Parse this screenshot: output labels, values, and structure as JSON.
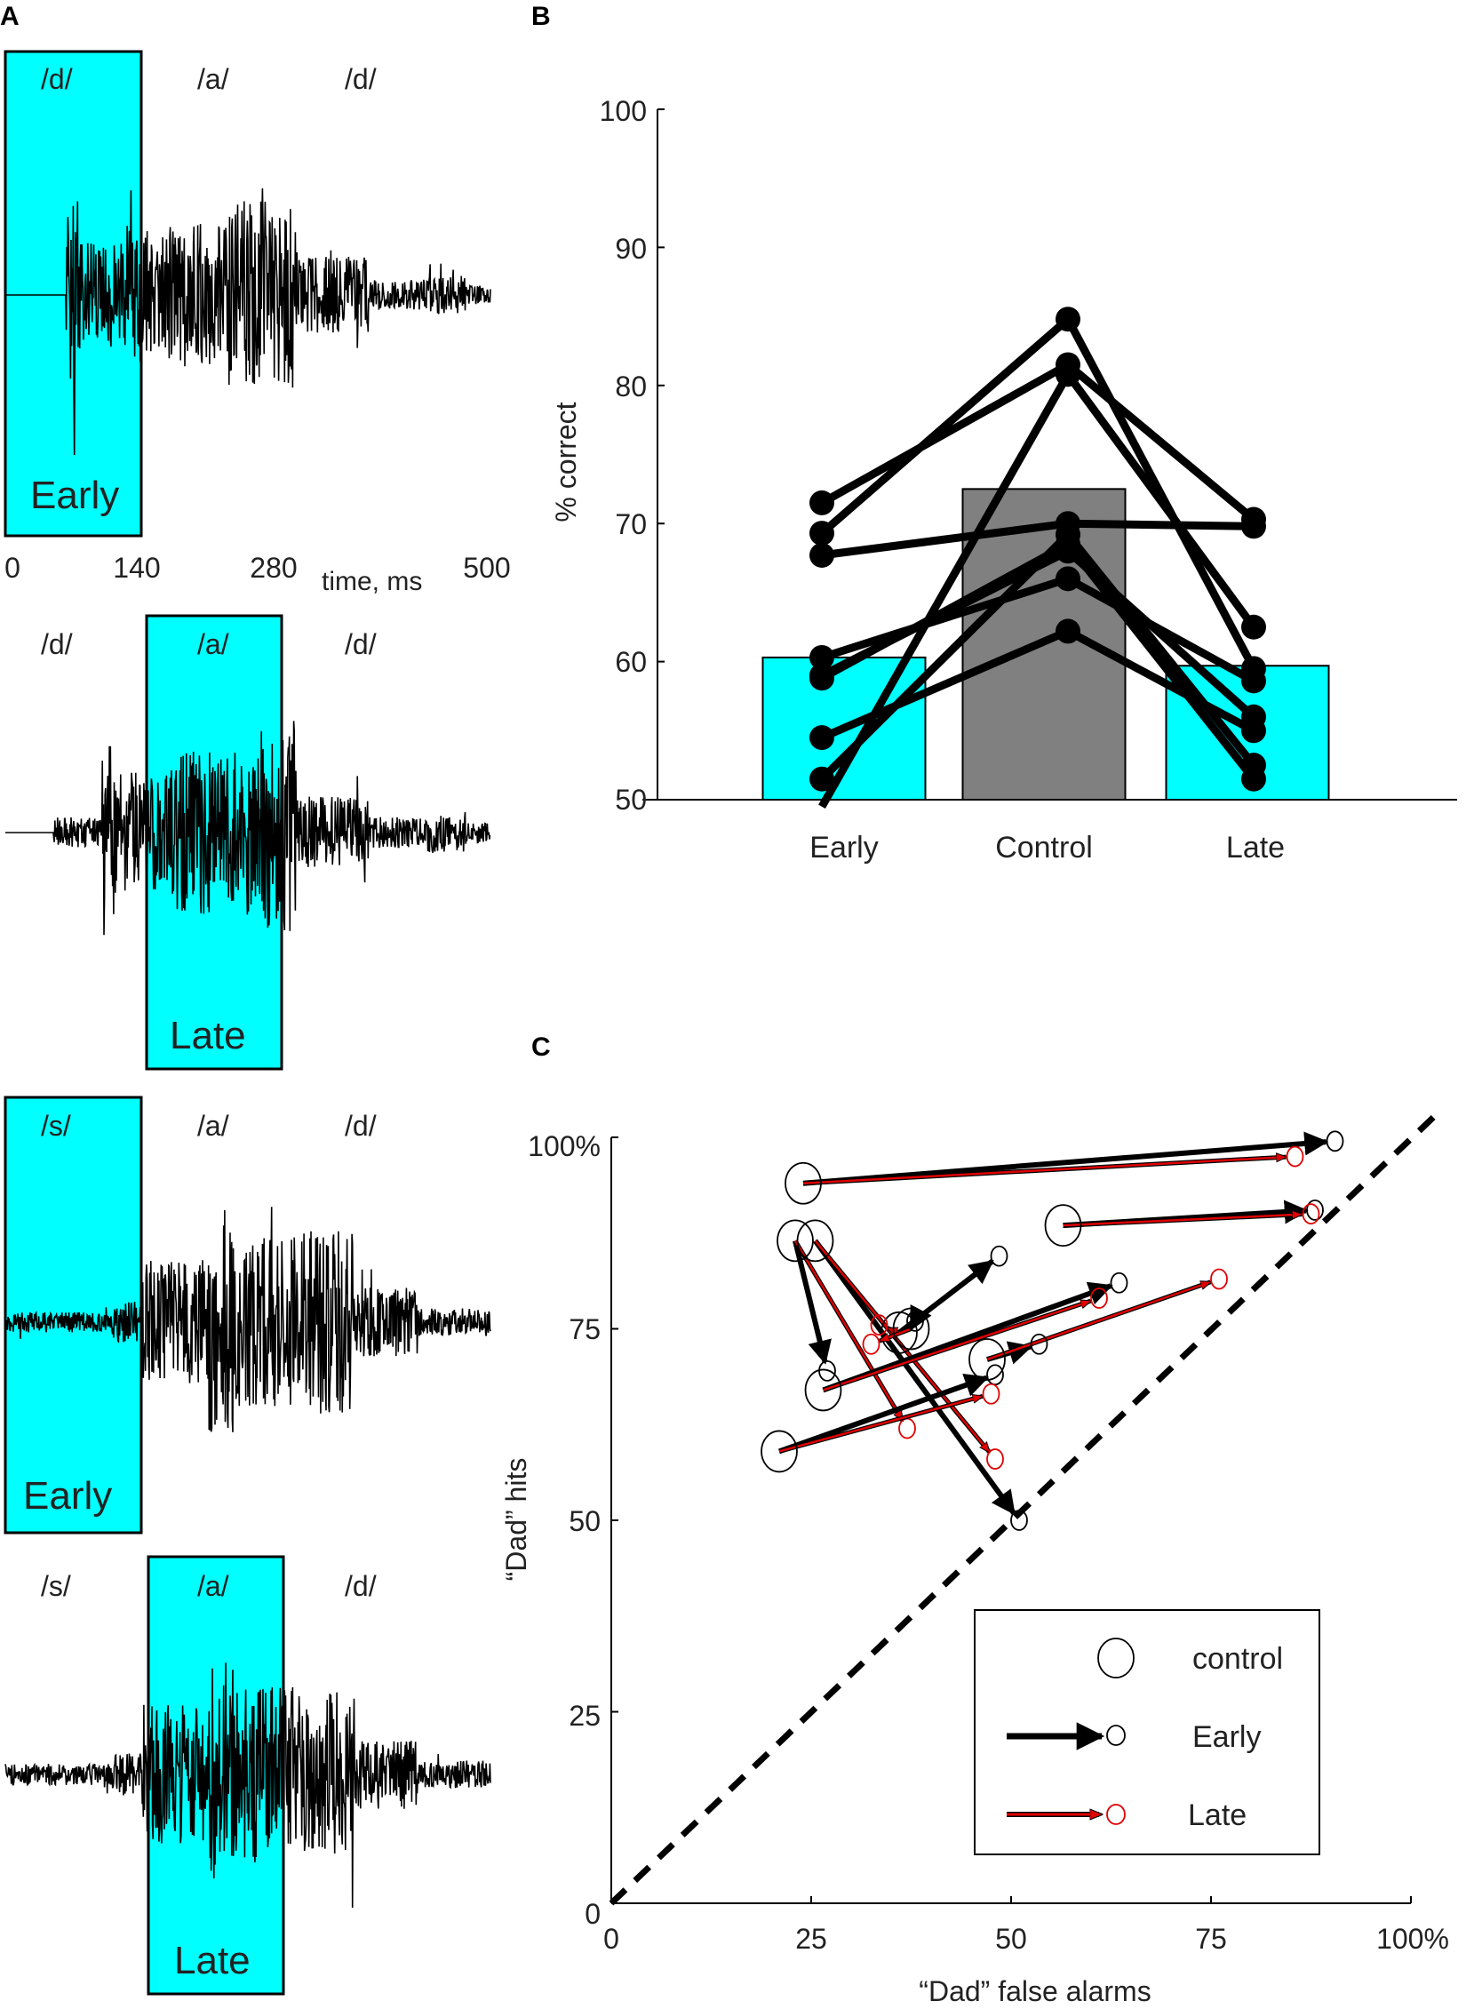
{
  "panels": {
    "a": "A",
    "b": "B",
    "c": "C"
  },
  "waveforms": [
    {
      "phonemes": [
        "/d/",
        "/a/",
        "/d/"
      ],
      "highlight": "Early",
      "seed": 11,
      "segments": [
        [
          0,
          0.125,
          0
        ],
        [
          0.125,
          0.155,
          1
        ],
        [
          0.155,
          0.25,
          0.55
        ],
        [
          0.25,
          0.46,
          0.75
        ],
        [
          0.46,
          0.6,
          1
        ],
        [
          0.6,
          0.75,
          0.4
        ],
        [
          0.75,
          0.87,
          0.16
        ],
        [
          0.87,
          0.95,
          0.2
        ],
        [
          0.95,
          1,
          0.1
        ]
      ]
    },
    {
      "phonemes": [
        "/d/",
        "/a/",
        "/d/"
      ],
      "highlight": "Late",
      "seed": 23,
      "segments": [
        [
          0,
          0.1,
          0
        ],
        [
          0.1,
          0.2,
          0.15
        ],
        [
          0.2,
          0.23,
          1
        ],
        [
          0.23,
          0.34,
          0.6
        ],
        [
          0.34,
          0.52,
          0.8
        ],
        [
          0.52,
          0.6,
          1
        ],
        [
          0.6,
          0.75,
          0.35
        ],
        [
          0.75,
          0.87,
          0.15
        ],
        [
          0.87,
          0.95,
          0.2
        ],
        [
          0.95,
          1,
          0.1
        ]
      ]
    },
    {
      "phonemes": [
        "/s/",
        "/a/",
        "/d/"
      ],
      "highlight": "Early",
      "seed": 37,
      "segments": [
        [
          0,
          0.22,
          0.09
        ],
        [
          0.22,
          0.28,
          0.18
        ],
        [
          0.28,
          0.42,
          0.55
        ],
        [
          0.42,
          0.47,
          1
        ],
        [
          0.47,
          0.6,
          0.75
        ],
        [
          0.6,
          0.72,
          0.8
        ],
        [
          0.72,
          0.85,
          0.3
        ],
        [
          0.85,
          1,
          0.12
        ]
      ]
    },
    {
      "phonemes": [
        "/s/",
        "/a/",
        "/d/"
      ],
      "highlight": "Late",
      "seed": 53,
      "segments": [
        [
          0,
          0.22,
          0.09
        ],
        [
          0.22,
          0.28,
          0.18
        ],
        [
          0.28,
          0.42,
          0.6
        ],
        [
          0.42,
          0.47,
          1
        ],
        [
          0.47,
          0.6,
          0.75
        ],
        [
          0.6,
          0.72,
          0.7
        ],
        [
          0.72,
          0.85,
          0.3
        ],
        [
          0.85,
          1,
          0.12
        ]
      ]
    }
  ],
  "time_axis": {
    "ticks": [
      "0",
      "140",
      "280",
      "500"
    ],
    "label": "time, ms"
  },
  "chart_data": [
    {
      "type": "bar",
      "categories": [
        "Early",
        "Control",
        "Late"
      ],
      "values": [
        60.3,
        72.5,
        59.7
      ],
      "bar_colors": [
        "#00ffff",
        "#808080",
        "#00ffff"
      ],
      "ylabel": "% correct",
      "ylim": [
        50,
        100
      ],
      "yticks": [
        "50",
        "60",
        "70",
        "80",
        "90",
        "100"
      ],
      "subjects": [
        [
          71.5,
          81.5,
          70.3
        ],
        [
          69.3,
          84.8,
          59.5
        ],
        [
          67.7,
          70.0,
          69.8
        ],
        [
          60.3,
          66.0,
          58.6
        ],
        [
          58.8,
          68.5,
          51.5
        ],
        [
          54.5,
          62.2,
          55.0
        ],
        [
          51.5,
          69.2,
          52.5
        ],
        [
          49.5,
          80.8,
          62.5
        ],
        [
          59.0,
          68.0,
          56.0
        ]
      ]
    },
    {
      "type": "scatter",
      "xlabel": "“Dad” false alarms",
      "ylabel": "“Dad” hits",
      "xlim": [
        0,
        100
      ],
      "ylim": [
        0,
        100
      ],
      "xticks": [
        "0",
        "25",
        "50",
        "75",
        "100%"
      ],
      "yticks": [
        "0",
        "25",
        "50",
        "75",
        "100%"
      ],
      "diagonal": true,
      "legend": {
        "position": "bottom-right",
        "control": "control",
        "early": "Early",
        "late": "Late"
      },
      "subjects": [
        {
          "control": [
            24,
            94
          ],
          "early": [
            90.5,
            99.5
          ],
          "late": [
            85.5,
            97.5
          ]
        },
        {
          "control": [
            56.5,
            88.5
          ],
          "early": [
            88,
            90.5
          ],
          "late": [
            87.5,
            90
          ]
        },
        {
          "control": [
            23,
            86.5
          ],
          "early": [
            27,
            69.5
          ],
          "late": [
            37,
            62
          ]
        },
        {
          "control": [
            25.5,
            86.5
          ],
          "early": [
            51,
            50
          ],
          "late": [
            48,
            58
          ]
        },
        {
          "control": [
            36,
            74.5
          ],
          "early": [
            48.5,
            84.5
          ],
          "late": [
            33.5,
            75.5
          ]
        },
        {
          "control": [
            26.5,
            67
          ],
          "early": [
            63.5,
            81
          ],
          "late": [
            61,
            79
          ]
        },
        {
          "control": [
            47,
            71
          ],
          "early": [
            53.5,
            73
          ],
          "late": [
            76,
            81.5
          ]
        },
        {
          "control": [
            21,
            59
          ],
          "early": [
            48,
            69
          ],
          "late": [
            47.5,
            66.5
          ]
        },
        {
          "control": [
            37.5,
            75
          ],
          "early": [
            38,
            76
          ],
          "late": [
            32.5,
            73
          ]
        }
      ]
    }
  ]
}
